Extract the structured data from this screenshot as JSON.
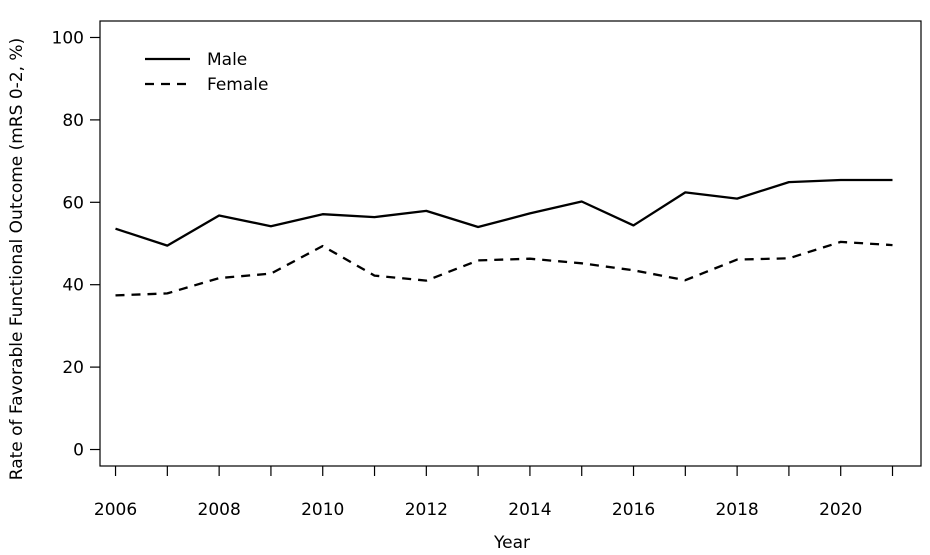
{
  "chart_data": {
    "type": "line",
    "title": "",
    "xlabel": "Year",
    "ylabel": "Rate of Favorable Functional Outcome (mRS 0-2, %)",
    "x": [
      2006,
      2007,
      2008,
      2009,
      2010,
      2011,
      2012,
      2013,
      2014,
      2015,
      2016,
      2017,
      2018,
      2019,
      2020,
      2021
    ],
    "xticks": [
      2006,
      2008,
      2010,
      2012,
      2014,
      2016,
      2018,
      2020
    ],
    "yticks": [
      0,
      20,
      40,
      60,
      80,
      100
    ],
    "xlim": [
      2005.7,
      2021.55
    ],
    "ylim": [
      -4,
      104
    ],
    "grid": false,
    "legend_position": "top-left",
    "series": [
      {
        "name": "Male",
        "style": "solid",
        "color": "#000000",
        "values": [
          53.6,
          49.5,
          56.8,
          54.2,
          57.1,
          56.4,
          57.9,
          54.0,
          57.3,
          60.2,
          54.4,
          62.4,
          60.9,
          64.9,
          65.4,
          65.4
        ]
      },
      {
        "name": "Female",
        "style": "dashed",
        "color": "#000000",
        "values": [
          37.4,
          37.9,
          41.6,
          42.7,
          49.4,
          42.2,
          41.0,
          45.9,
          46.3,
          45.2,
          43.5,
          41.1,
          46.1,
          46.4,
          50.4,
          49.6
        ]
      }
    ]
  }
}
